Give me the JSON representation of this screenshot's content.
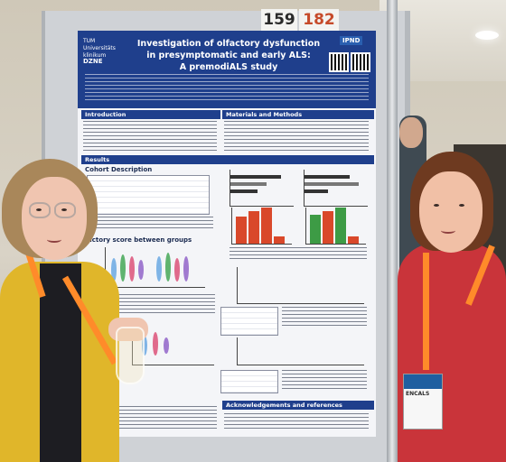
{
  "board": {
    "number_left": "159",
    "number_right": "182"
  },
  "poster": {
    "title_line1": "Investigation of olfactory dysfunction",
    "title_line2": "in presymptomatic and early ALS:",
    "title_line3": "A premodiALS study",
    "logo_text": "TUM Universitäts klinikum",
    "logo_text2": "DZNE",
    "badge_text": "IPND",
    "sections": {
      "introduction": "Introduction",
      "methods": "Materials and Methods",
      "results": "Results",
      "cohort": "Cohort Description",
      "groups": "factory score between groups",
      "ack": "Acknowledgements and references"
    }
  },
  "badge_right": {
    "label": "ENCALS"
  },
  "colors": {
    "poster_blue": "#1f3f8c",
    "bar_red": "#d9482a",
    "bar_green": "#3d9b45",
    "lanyard_orange": "#ff8b2a",
    "sweater_yellow": "#e0b62a",
    "shirt_red": "#c9343a"
  }
}
